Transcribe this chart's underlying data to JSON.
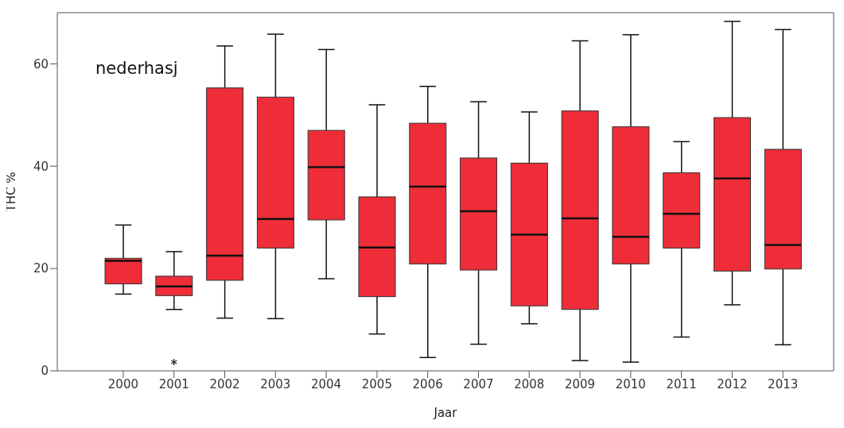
{
  "chart_data": {
    "type": "box",
    "xlabel": "Jaar",
    "ylabel": "THC %",
    "annotations": [
      "nederhasj"
    ],
    "categories": [
      "2000",
      "2001",
      "2002",
      "2003",
      "2004",
      "2005",
      "2006",
      "2007",
      "2008",
      "2009",
      "2010",
      "2011",
      "2012",
      "2013"
    ],
    "ylim": [
      0,
      70
    ],
    "yticks": [
      0,
      20,
      40,
      60
    ],
    "grid": false,
    "legend": false,
    "series": [
      {
        "color": "#ee2d38",
        "boxes": [
          {
            "low": 15,
            "q1": 17,
            "median": 21.5,
            "q3": 22,
            "high": 28.5
          },
          {
            "low": 12,
            "q1": 14.7,
            "median": 16.5,
            "q3": 18.5,
            "high": 23.3,
            "outliers": [
              1.7
            ]
          },
          {
            "low": 10.3,
            "q1": 17.7,
            "median": 22.5,
            "q3": 55.3,
            "high": 63.5
          },
          {
            "low": 10.2,
            "q1": 24,
            "median": 29.7,
            "q3": 53.5,
            "high": 65.8
          },
          {
            "low": 18,
            "q1": 29.5,
            "median": 39.8,
            "q3": 47,
            "high": 62.8
          },
          {
            "low": 7.2,
            "q1": 14.5,
            "median": 24.1,
            "q3": 34,
            "high": 52
          },
          {
            "low": 2.6,
            "q1": 20.9,
            "median": 36,
            "q3": 48.4,
            "high": 55.6
          },
          {
            "low": 5.2,
            "q1": 19.7,
            "median": 31.2,
            "q3": 41.6,
            "high": 52.6
          },
          {
            "low": 9.2,
            "q1": 12.7,
            "median": 26.6,
            "q3": 40.6,
            "high": 50.6
          },
          {
            "low": 2,
            "q1": 12,
            "median": 29.8,
            "q3": 50.8,
            "high": 64.5
          },
          {
            "low": 1.7,
            "q1": 20.9,
            "median": 26.2,
            "q3": 47.7,
            "high": 65.7
          },
          {
            "low": 6.6,
            "q1": 24,
            "median": 30.7,
            "q3": 38.7,
            "high": 44.8
          },
          {
            "low": 12.9,
            "q1": 19.5,
            "median": 37.6,
            "q3": 49.5,
            "high": 68.3
          },
          {
            "low": 5.1,
            "q1": 19.9,
            "median": 24.6,
            "q3": 43.3,
            "high": 66.7
          }
        ]
      }
    ]
  }
}
